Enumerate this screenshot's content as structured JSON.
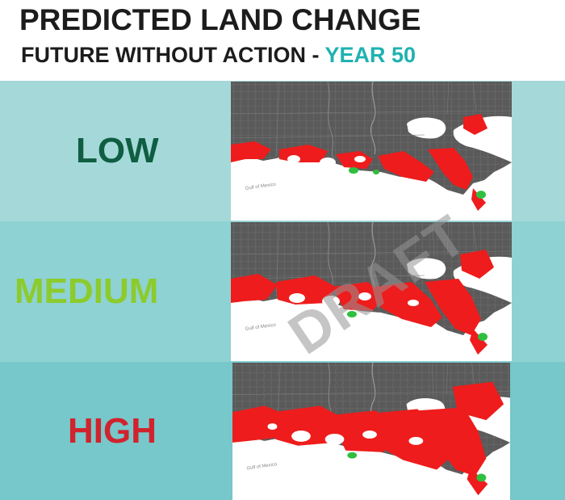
{
  "header": {
    "title": "PREDICTED LAND CHANGE",
    "subtitle_main": "FUTURE WITHOUT ACTION - ",
    "subtitle_highlight": "YEAR 50"
  },
  "scenarios": [
    {
      "label": "LOW",
      "color": "#0f5e42",
      "map_label": "Gulf of Mexico"
    },
    {
      "label": "MEDIUM",
      "color": "#8ccb2d",
      "map_label": "Gulf of Mexico"
    },
    {
      "label": "HIGH",
      "color": "#d1232d",
      "map_label": "Gulf of Mexico"
    }
  ],
  "watermark": "DRAFT",
  "colors": {
    "land": "#555555",
    "water": "#ffffff",
    "land_loss": "#ee1c1c",
    "land_gain": "#2fbf3f",
    "highlight": "#1fb2b0"
  }
}
